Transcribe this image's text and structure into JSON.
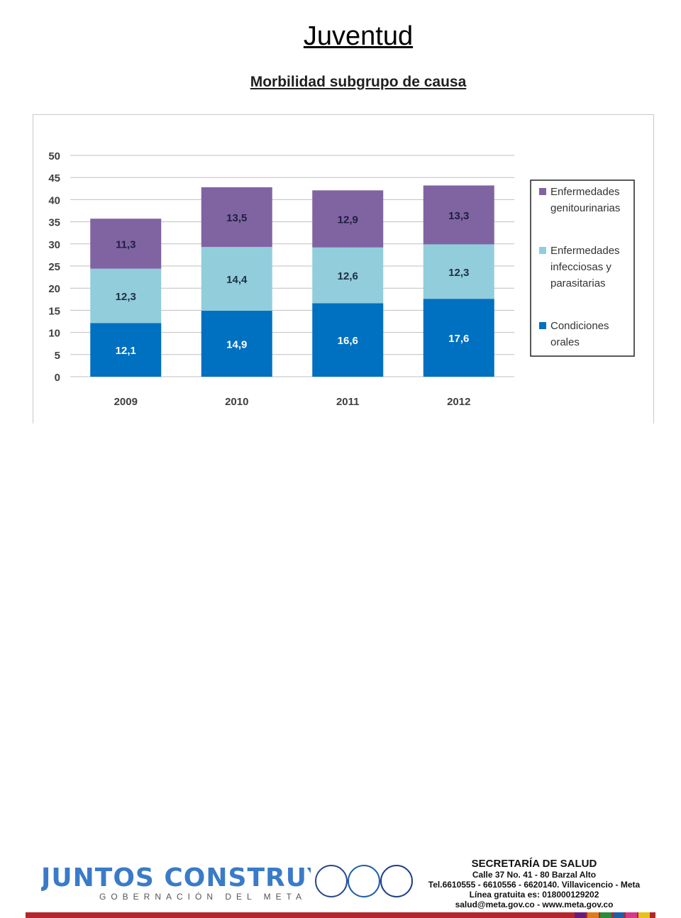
{
  "header": {
    "title": "Juventud",
    "subtitle": "Morbilidad subgrupo de causa"
  },
  "chart_data": {
    "type": "bar",
    "stacked": true,
    "categories": [
      "2009",
      "2010",
      "2011",
      "2012"
    ],
    "ylim": [
      0,
      50
    ],
    "yticks": [
      "0",
      "5",
      "10",
      "15",
      "20",
      "25",
      "30",
      "35",
      "40",
      "45",
      "50"
    ],
    "grid": true,
    "legend_position": "right",
    "series": [
      {
        "name": "Condiciones orales",
        "legend_lines": [
          "Condiciones",
          "orales"
        ],
        "values": [
          12.1,
          14.9,
          16.6,
          17.6
        ],
        "labels": [
          "12,1",
          "14,9",
          "16,6",
          "17,6"
        ],
        "color": "#0070c0",
        "label_color": "#ffffff"
      },
      {
        "name": "Enfermedades infecciosas y parasitarias",
        "legend_lines": [
          "Enfermedades",
          "infecciosas y",
          "parasitarias"
        ],
        "values": [
          12.3,
          14.4,
          12.6,
          12.3
        ],
        "labels": [
          "12,3",
          "14,4",
          "12,6",
          "12,3"
        ],
        "color": "#92cddc",
        "label_color": "#1f2f3f"
      },
      {
        "name": "Enfermedades genitourinarias",
        "legend_lines": [
          "Enfermedades",
          "genitourinarias"
        ],
        "values": [
          11.3,
          13.5,
          12.9,
          13.3
        ],
        "labels": [
          "11,3",
          "13,5",
          "12,9",
          "13,3"
        ],
        "color": "#8064a2",
        "label_color": "#1f1f3f"
      }
    ]
  },
  "footer": {
    "logo_text": "JUNTOS CONSTRUYENDO",
    "logo_subtitle": "GOBERNACIÓN DEL META",
    "secretaria": {
      "title": "SECRETARÍA DE SALUD",
      "address": "Calle 37 No. 41 - 80 Barzal Alto",
      "phones": "Tel.6610555 - 6610556 - 6620140. Villavicencio - Meta",
      "free_line": "Línea gratuita es: 018000129202",
      "contact": "salud@meta.gov.co - www.meta.gov.co"
    },
    "colors": {
      "stripe": "#b3262b",
      "stripe_accents": [
        "#6a1b7a",
        "#e07b1a",
        "#2a8c3a",
        "#1e5fa8",
        "#d63a8a",
        "#e8c21a"
      ]
    }
  }
}
